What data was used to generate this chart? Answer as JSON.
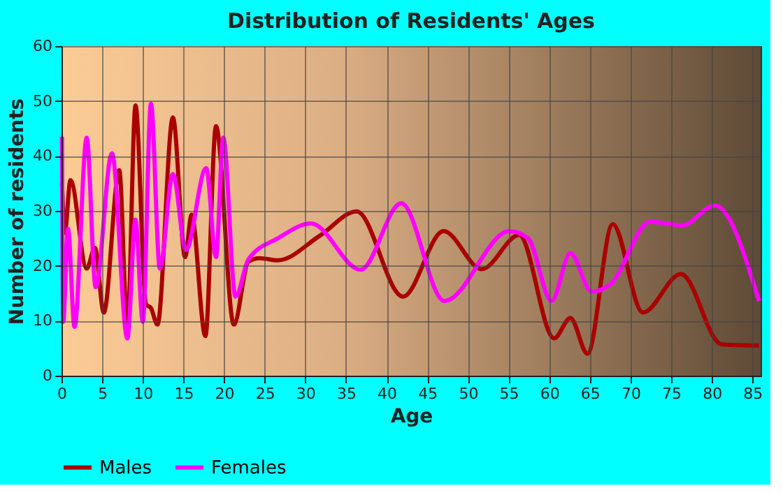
{
  "chart_data": {
    "type": "line",
    "title": "Distribution of Residents' Ages",
    "xlabel": "Age",
    "ylabel": "Number of residents",
    "xlim": [
      0,
      86
    ],
    "xticks": [
      0,
      5,
      10,
      15,
      20,
      25,
      30,
      35,
      40,
      45,
      50,
      55,
      60,
      65,
      70,
      75,
      80,
      85
    ],
    "ylim": [
      0,
      60
    ],
    "yticks": [
      0,
      10,
      20,
      30,
      40,
      50,
      60
    ],
    "grid": true,
    "legend": "bottom",
    "line_style": "solid",
    "marker": "none",
    "series": [
      {
        "name": "Males",
        "color": "#aa0000",
        "x": [
          0.06,
          0.4,
          1.1,
          3.1,
          4.1,
          5.2,
          7.1,
          8.1,
          9.1,
          10.4,
          11,
          11.8,
          13.7,
          15.2,
          16,
          17.7,
          19,
          21.2,
          23,
          24.4,
          26.6,
          31.8,
          36.3,
          42,
          47,
          51.7,
          56.3,
          60.6,
          62.6,
          64.7,
          67.8,
          71.5,
          76.2,
          81.2,
          85.8
        ],
        "values": [
          35,
          26,
          35.6,
          19.5,
          23.3,
          11.5,
          37.4,
          8.9,
          49.2,
          13,
          12.3,
          9.3,
          47,
          21.6,
          29.3,
          7.2,
          45.4,
          9.3,
          20.8,
          21.4,
          21,
          25.5,
          29.9,
          14.4,
          26.3,
          19.4,
          25.6,
          6.8,
          10.5,
          4,
          27.6,
          11.5,
          18.5,
          5.7,
          5.5
        ]
      },
      {
        "name": "Females",
        "color": "#ff00ff",
        "x": [
          0.06,
          0.2,
          0.8,
          1.6,
          3.1,
          4.2,
          6.2,
          8.1,
          9.1,
          10,
          11,
          12.1,
          13.7,
          15.3,
          17.8,
          19,
          19.9,
          21.4,
          23,
          26.6,
          30.7,
          36.8,
          41.8,
          47.1,
          55.1,
          57.4,
          60.3,
          62.6,
          65.2,
          67.5,
          72.4,
          76.4,
          80.4,
          85.8
        ],
        "values": [
          43.5,
          9.8,
          26.7,
          8.9,
          43.3,
          16.1,
          40.5,
          6.8,
          28.4,
          9.8,
          49.5,
          19.5,
          36.7,
          22.9,
          37.8,
          21.6,
          43.3,
          14.4,
          21.2,
          25,
          27.7,
          19.3,
          31.4,
          13.6,
          26.3,
          25,
          13.6,
          22.3,
          15.3,
          16.6,
          28,
          27.4,
          31,
          13.6
        ]
      }
    ]
  }
}
